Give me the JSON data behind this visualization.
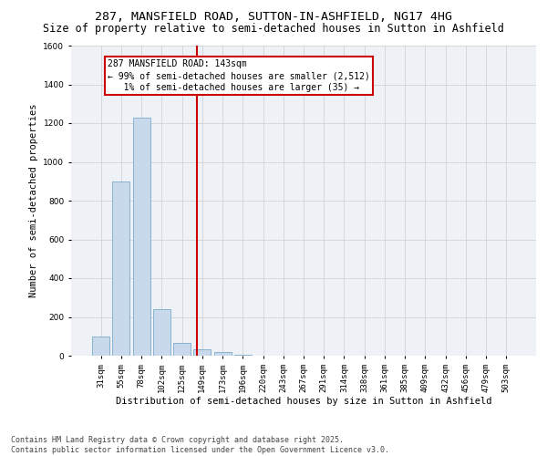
{
  "title_line1": "287, MANSFIELD ROAD, SUTTON-IN-ASHFIELD, NG17 4HG",
  "title_line2": "Size of property relative to semi-detached houses in Sutton in Ashfield",
  "xlabel": "Distribution of semi-detached houses by size in Sutton in Ashfield",
  "ylabel": "Number of semi-detached properties",
  "categories": [
    "31sqm",
    "55sqm",
    "78sqm",
    "102sqm",
    "125sqm",
    "149sqm",
    "173sqm",
    "196sqm",
    "220sqm",
    "243sqm",
    "267sqm",
    "291sqm",
    "314sqm",
    "338sqm",
    "361sqm",
    "385sqm",
    "409sqm",
    "432sqm",
    "456sqm",
    "479sqm",
    "503sqm"
  ],
  "values": [
    100,
    900,
    1230,
    240,
    65,
    35,
    20,
    5,
    2,
    1,
    0,
    0,
    0,
    0,
    0,
    0,
    0,
    0,
    0,
    0,
    0
  ],
  "bar_color": "#c9d9ec",
  "bar_edge_color": "#7aaac8",
  "vline_x": 4.72,
  "vline_color": "#cc0000",
  "annotation_text": "287 MANSFIELD ROAD: 143sqm\n← 99% of semi-detached houses are smaller (2,512)\n   1% of semi-detached houses are larger (35) →",
  "annotation_box_color": "#cc0000",
  "ylim": [
    0,
    1600
  ],
  "yticks": [
    0,
    200,
    400,
    600,
    800,
    1000,
    1200,
    1400,
    1600
  ],
  "grid_color": "#cccccc",
  "bg_color": "#eef2f7",
  "footer_text": "Contains HM Land Registry data © Crown copyright and database right 2025.\nContains public sector information licensed under the Open Government Licence v3.0.",
  "title_fontsize": 9.5,
  "subtitle_fontsize": 8.5,
  "axis_label_fontsize": 7.5,
  "tick_fontsize": 6.5,
  "annotation_fontsize": 7,
  "footer_fontsize": 6
}
